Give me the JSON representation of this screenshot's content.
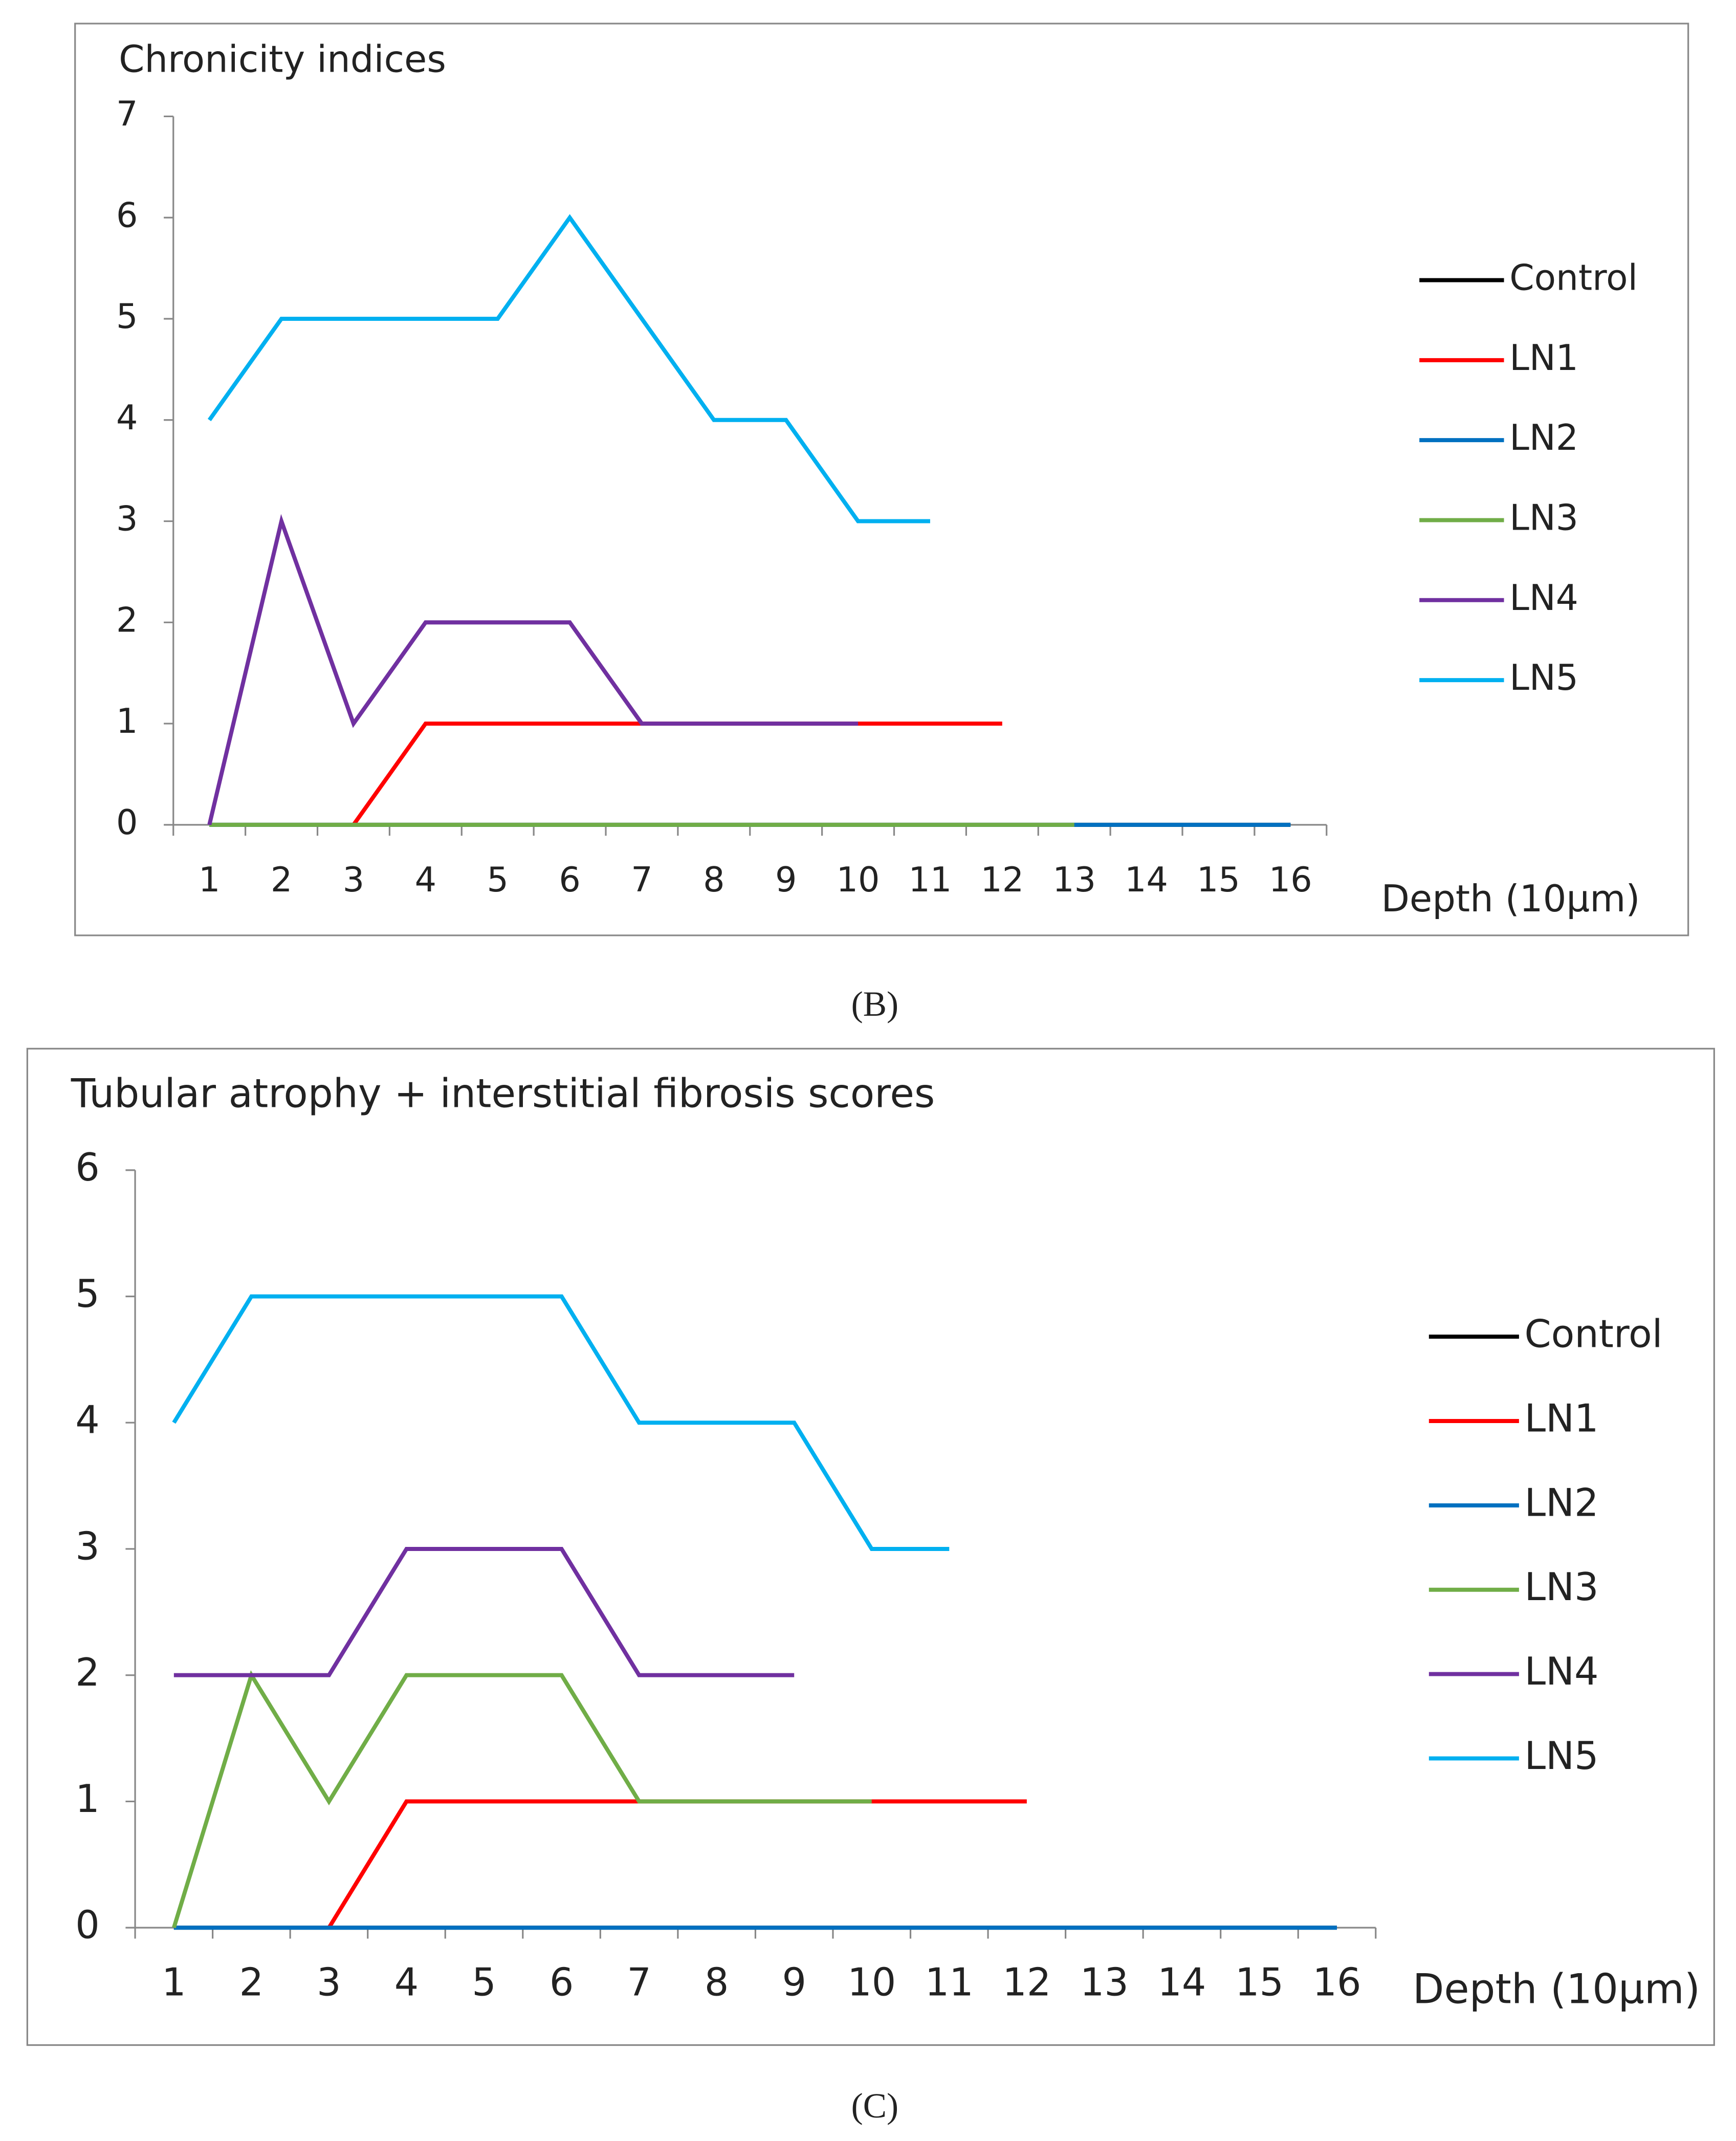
{
  "chart_data": [
    {
      "type": "line",
      "title": "Chronicity indices",
      "xlabel": "Depth (10µm)",
      "label": "(B)",
      "categories": [
        "1",
        "2",
        "3",
        "4",
        "5",
        "6",
        "7",
        "8",
        "9",
        "10",
        "11",
        "12",
        "13",
        "14",
        "15",
        "16"
      ],
      "ylim": [
        0,
        7
      ],
      "yticks": [
        0,
        1,
        2,
        3,
        4,
        5,
        6,
        7
      ],
      "legend": "right",
      "series": [
        {
          "name": "Control",
          "color": "#000000",
          "values": [
            0,
            0,
            0,
            0,
            0,
            0,
            0,
            0,
            0,
            0,
            0,
            0,
            0,
            0,
            0,
            0
          ]
        },
        {
          "name": "LN1",
          "color": "#ff0000",
          "values": [
            null,
            null,
            0,
            1,
            1,
            1,
            1,
            1,
            1,
            1,
            1,
            1,
            null,
            null,
            null,
            null
          ]
        },
        {
          "name": "LN2",
          "color": "#0070c0",
          "values": [
            0,
            0,
            0,
            0,
            0,
            0,
            0,
            0,
            0,
            0,
            0,
            0,
            0,
            0,
            0,
            0
          ]
        },
        {
          "name": "LN3",
          "color": "#70ad47",
          "values": [
            0,
            0,
            0,
            0,
            0,
            0,
            0,
            0,
            0,
            0,
            0,
            0,
            0,
            null,
            null,
            null
          ]
        },
        {
          "name": "LN4",
          "color": "#7030a0",
          "values": [
            0,
            3,
            1,
            2,
            2,
            2,
            1,
            1,
            1,
            1,
            null,
            null,
            null,
            null,
            null,
            null
          ]
        },
        {
          "name": "LN5",
          "color": "#00b0f0",
          "values": [
            4,
            5,
            5,
            5,
            5,
            6,
            5,
            4,
            4,
            3,
            3,
            null,
            null,
            null,
            null,
            null
          ]
        }
      ]
    },
    {
      "type": "line",
      "title": "Tubular atrophy + interstitial fibrosis scores",
      "xlabel": "Depth (10µm)",
      "label": "(C)",
      "categories": [
        "1",
        "2",
        "3",
        "4",
        "5",
        "6",
        "7",
        "8",
        "9",
        "10",
        "11",
        "12",
        "13",
        "14",
        "15",
        "16"
      ],
      "ylim": [
        0,
        6
      ],
      "yticks": [
        0,
        1,
        2,
        3,
        4,
        5,
        6
      ],
      "legend": "right",
      "series": [
        {
          "name": "Control",
          "color": "#000000",
          "values": [
            0,
            0,
            0,
            0,
            0,
            0,
            0,
            0,
            0,
            0,
            0,
            0,
            0,
            0,
            0,
            0
          ]
        },
        {
          "name": "LN1",
          "color": "#ff0000",
          "values": [
            null,
            null,
            0,
            1,
            1,
            1,
            1,
            1,
            1,
            1,
            1,
            1,
            null,
            null,
            null,
            null
          ]
        },
        {
          "name": "LN2",
          "color": "#0070c0",
          "values": [
            0,
            0,
            0,
            0,
            0,
            0,
            0,
            0,
            0,
            0,
            0,
            0,
            0,
            0,
            0,
            0
          ]
        },
        {
          "name": "LN3",
          "color": "#70ad47",
          "values": [
            0,
            2,
            1,
            2,
            2,
            2,
            1,
            1,
            1,
            1,
            null,
            null,
            null,
            null,
            null,
            null
          ]
        },
        {
          "name": "LN4",
          "color": "#7030a0",
          "values": [
            2,
            2,
            2,
            3,
            3,
            3,
            2,
            2,
            2,
            null,
            null,
            null,
            null,
            null,
            null,
            null
          ]
        },
        {
          "name": "LN5",
          "color": "#00b0f0",
          "values": [
            4,
            5,
            5,
            5,
            5,
            5,
            4,
            4,
            4,
            3,
            3,
            null,
            null,
            null,
            null,
            null
          ]
        }
      ]
    }
  ]
}
